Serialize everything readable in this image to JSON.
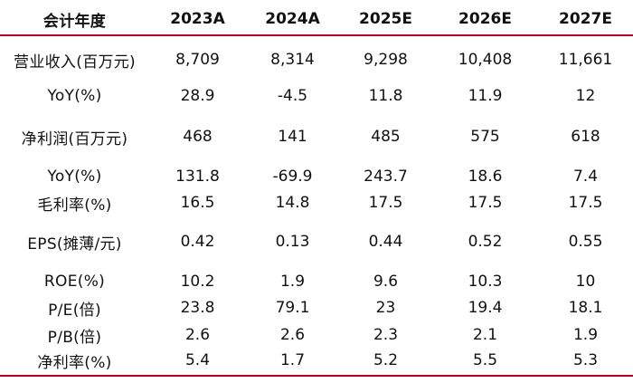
{
  "table": {
    "header": [
      "会计年度",
      "2023A",
      "2024A",
      "2025E",
      "2026E",
      "2027E"
    ],
    "rows": [
      {
        "label": "营业收入(百万元)",
        "values": [
          "8,709",
          "8,314",
          "9,298",
          "10,408",
          "11,661"
        ]
      },
      {
        "label": "YoY(%)",
        "values": [
          "28.9",
          "-4.5",
          "11.8",
          "11.9",
          "12"
        ]
      },
      {
        "label": "净利润(百万元)",
        "values": [
          "468",
          "141",
          "485",
          "575",
          "618"
        ]
      },
      {
        "label": "YoY(%)",
        "values": [
          "131.8",
          "-69.9",
          "243.7",
          "18.6",
          "7.4"
        ]
      },
      {
        "label": "毛利率(%)",
        "values": [
          "16.5",
          "14.8",
          "17.5",
          "17.5",
          "17.5"
        ]
      },
      {
        "label": "EPS(摊薄/元)",
        "values": [
          "0.42",
          "0.13",
          "0.44",
          "0.52",
          "0.55"
        ]
      },
      {
        "label": "ROE(%)",
        "values": [
          "10.2",
          "1.9",
          "9.6",
          "10.3",
          "10"
        ]
      },
      {
        "label": "P/E(倍)",
        "values": [
          "23.8",
          "79.1",
          "23",
          "19.4",
          "18.1"
        ]
      },
      {
        "label": "P/B(倍)",
        "values": [
          "2.6",
          "2.6",
          "2.3",
          "2.1",
          "1.9"
        ]
      },
      {
        "label": "净利率(%)",
        "values": [
          "5.4",
          "1.7",
          "5.2",
          "5.5",
          "5.3"
        ]
      }
    ]
  },
  "colors": {
    "rule": "#b0001a",
    "text": "#111111",
    "background": "#ffffff"
  }
}
